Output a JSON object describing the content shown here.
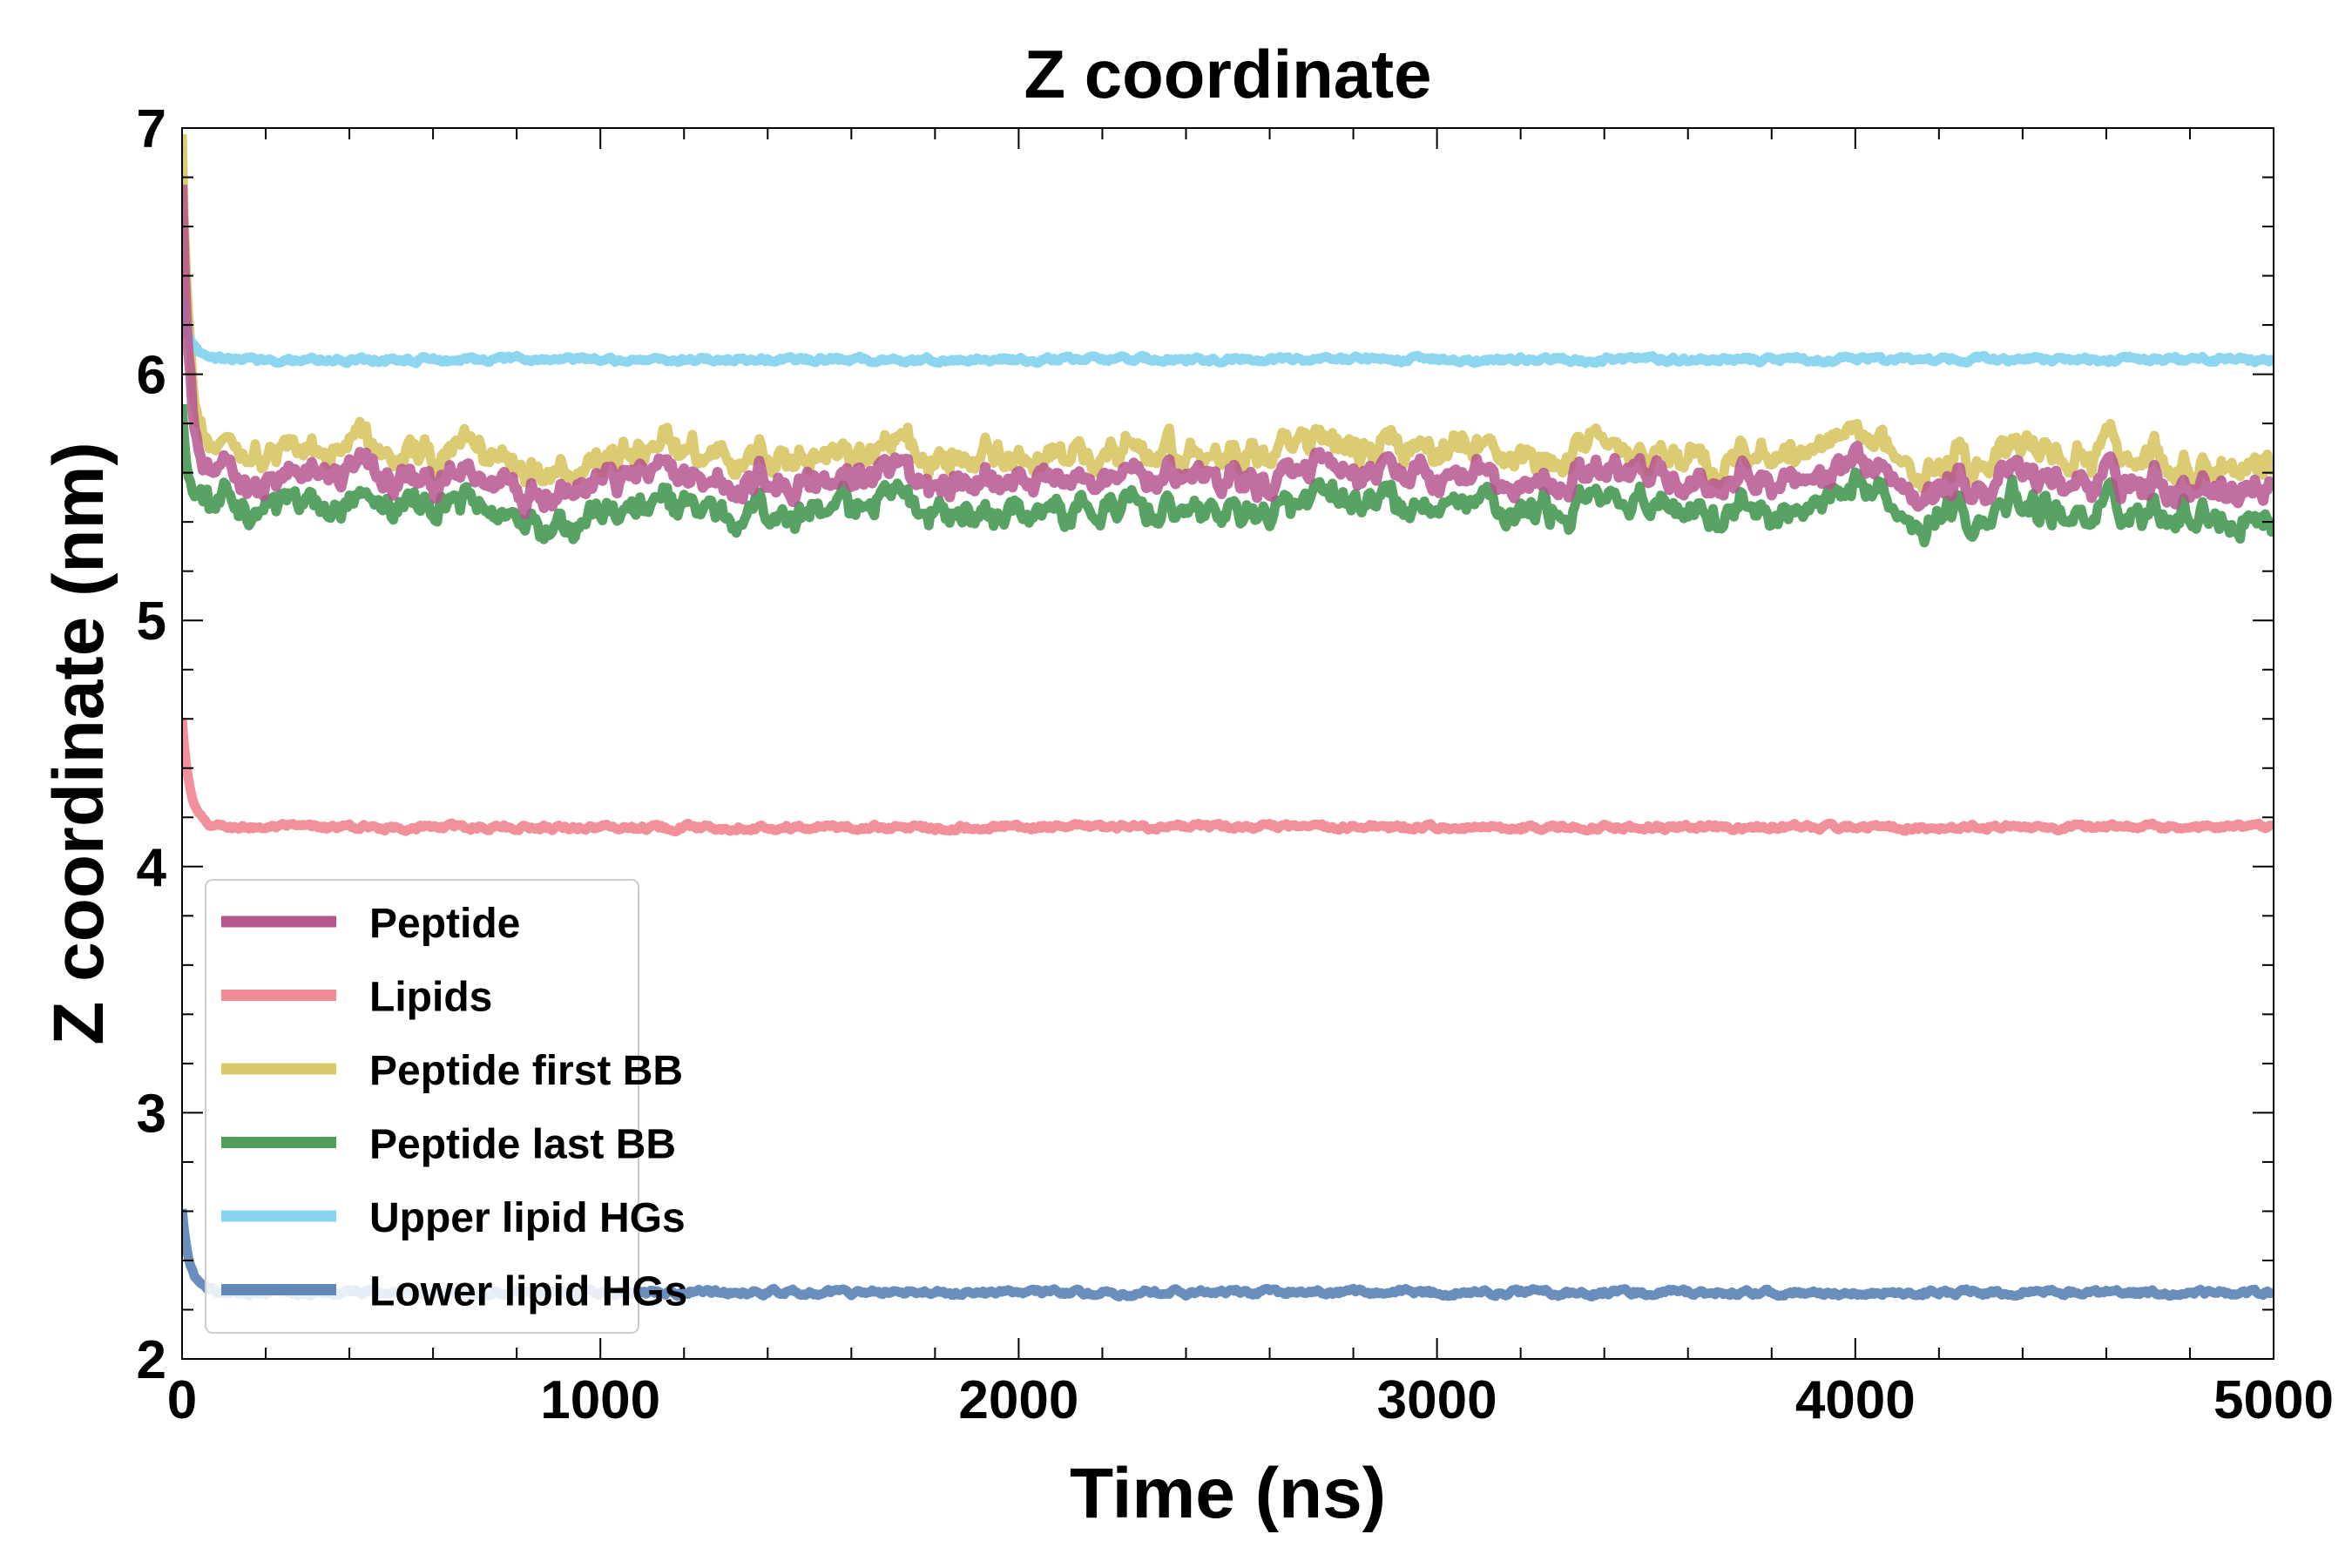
{
  "chart_data": {
    "type": "line",
    "title": "Z coordinate",
    "xlabel": "Time (ns)",
    "ylabel": "Z coordinate (nm)",
    "xlim": [
      0,
      5000
    ],
    "ylim": [
      2,
      7
    ],
    "xticks": [
      "0",
      "1000",
      "2000",
      "3000",
      "4000",
      "5000"
    ],
    "yticks": [
      "2",
      "3",
      "4",
      "5",
      "6",
      "7"
    ],
    "grid": false,
    "legend_position": "lower-left",
    "series": [
      {
        "name": "Peptide",
        "color": "#b5568f",
        "start_value": 6.8,
        "mean": 5.57,
        "noise": 0.1,
        "x": [
          0,
          500,
          1000,
          1500,
          2000,
          2500,
          3000,
          3500,
          4000,
          4500,
          5000
        ],
        "y": [
          6.8,
          5.55,
          5.5,
          5.6,
          5.55,
          5.55,
          5.6,
          5.55,
          5.55,
          5.55,
          5.6
        ]
      },
      {
        "name": "Lipids",
        "color": "#f08a96",
        "start_value": 4.6,
        "mean": 4.16,
        "noise": 0.02,
        "x": [
          0,
          500,
          1000,
          1500,
          2000,
          2500,
          3000,
          3500,
          4000,
          4500,
          5000
        ],
        "y": [
          4.6,
          4.17,
          4.16,
          4.16,
          4.17,
          4.16,
          4.17,
          4.16,
          4.17,
          4.16,
          4.16
        ]
      },
      {
        "name": "Peptide first BB",
        "color": "#d9c86b",
        "start_value": 7.0,
        "mean": 5.67,
        "noise": 0.11,
        "x": [
          0,
          500,
          1000,
          1500,
          2000,
          2500,
          3000,
          3500,
          4000,
          4500,
          5000
        ],
        "y": [
          7.0,
          5.7,
          5.65,
          5.75,
          5.65,
          5.7,
          5.65,
          5.65,
          5.7,
          5.65,
          5.7
        ]
      },
      {
        "name": "Peptide last BB",
        "color": "#4f9e5c",
        "start_value": 5.9,
        "mean": 5.45,
        "noise": 0.11,
        "x": [
          0,
          500,
          1000,
          1500,
          2000,
          2500,
          3000,
          3500,
          4000,
          4500,
          5000
        ],
        "y": [
          5.9,
          5.45,
          5.4,
          5.45,
          5.4,
          5.4,
          5.45,
          5.4,
          5.45,
          5.4,
          5.45
        ]
      },
      {
        "name": "Upper lipid HGs",
        "color": "#86d4ef",
        "start_value": 6.3,
        "mean": 6.06,
        "noise": 0.02,
        "x": [
          0,
          500,
          1000,
          1500,
          2000,
          2500,
          3000,
          3500,
          4000,
          4500,
          5000
        ],
        "y": [
          6.3,
          6.06,
          6.05,
          6.06,
          6.05,
          6.06,
          6.06,
          6.05,
          6.07,
          6.05,
          6.06
        ]
      },
      {
        "name": "Lower lipid HGs",
        "color": "#6188b8",
        "start_value": 2.6,
        "mean": 2.27,
        "noise": 0.02,
        "x": [
          0,
          500,
          1000,
          1500,
          2000,
          2500,
          3000,
          3500,
          4000,
          4500,
          5000
        ],
        "y": [
          2.6,
          2.27,
          2.27,
          2.27,
          2.27,
          2.28,
          2.28,
          2.27,
          2.28,
          2.27,
          2.27
        ]
      }
    ]
  }
}
